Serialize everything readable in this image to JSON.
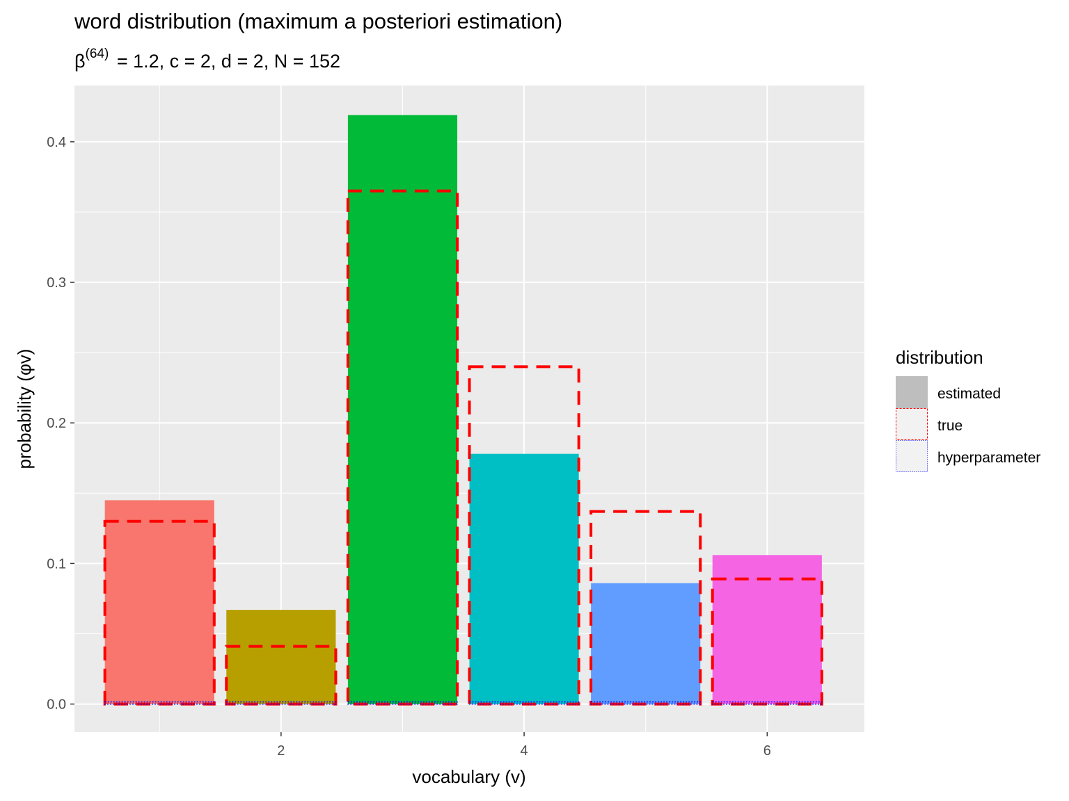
{
  "chart_data": {
    "type": "bar",
    "title": "word distribution (maximum a posteriori estimation)",
    "subtitle": "β(64) = 1.2, c = 2, d = 2, N = 152",
    "xlabel": "vocabulary (v)",
    "ylabel": "probability (φv)",
    "categories": [
      1,
      2,
      3,
      4,
      5,
      6
    ],
    "xlim": [
      0.3,
      6.8
    ],
    "ylim": [
      -0.02,
      0.44
    ],
    "x_ticks": [
      2,
      4,
      6
    ],
    "x_tick_labels": [
      "2",
      "4",
      "6"
    ],
    "y_ticks": [
      0.0,
      0.1,
      0.2,
      0.3,
      0.4
    ],
    "y_tick_labels": [
      "0.0",
      "0.1",
      "0.2",
      "0.3",
      "0.4"
    ],
    "grid": true,
    "series": [
      {
        "name": "estimated",
        "style": "filled",
        "values": [
          0.145,
          0.067,
          0.419,
          0.178,
          0.086,
          0.106
        ],
        "colors": [
          "#F8766D",
          "#B79F00",
          "#00BA38",
          "#00BFC4",
          "#619CFF",
          "#F564E3"
        ]
      },
      {
        "name": "true",
        "style": "dashed-outline",
        "color": "#FF0000",
        "values": [
          0.13,
          0.041,
          0.365,
          0.24,
          0.137,
          0.089
        ]
      },
      {
        "name": "hyperparameter",
        "style": "dotted-outline",
        "color": "#0000FF",
        "values": [
          0.0015,
          0.0015,
          0.0015,
          0.0015,
          0.0015,
          0.0015
        ]
      }
    ],
    "legend": {
      "title": "distribution",
      "position": "right",
      "items": [
        "estimated",
        "true",
        "hyperparameter"
      ]
    },
    "colors": {
      "panel": "#EBEBEB",
      "grid": "#FFFFFF",
      "legend_fill": "#BEBEBE"
    }
  }
}
